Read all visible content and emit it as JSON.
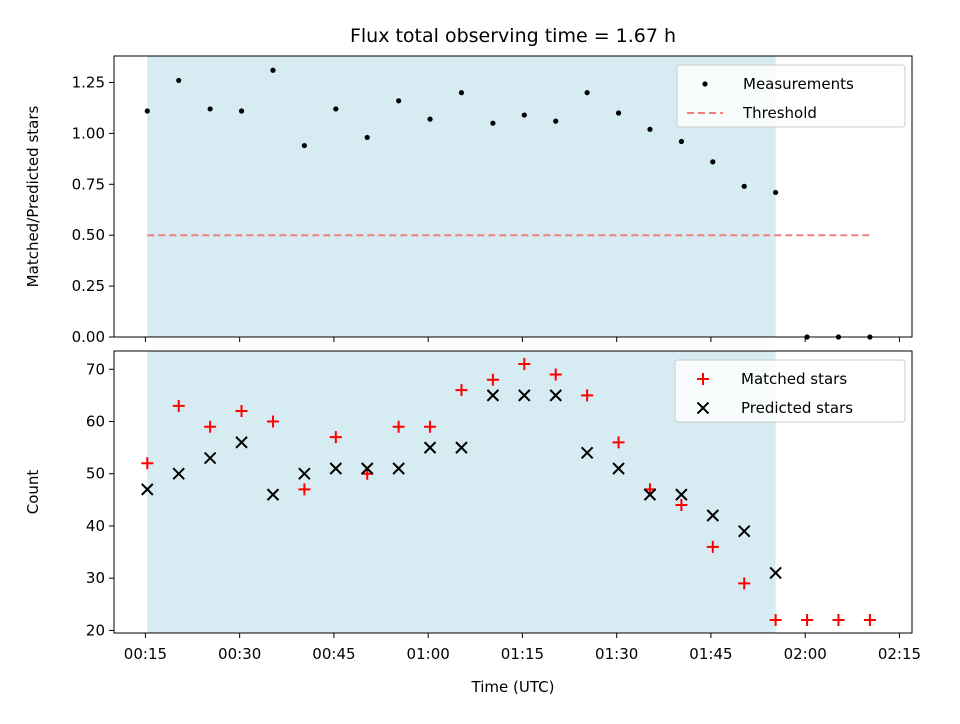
{
  "chart_data": {
    "type": "scatter",
    "title": "Flux total observing time = 1.67 h",
    "xlabel": "Time (UTC)",
    "x_ticks": [
      "00:15",
      "00:30",
      "00:45",
      "01:00",
      "01:15",
      "01:30",
      "01:45",
      "02:00",
      "02:15"
    ],
    "x_tick_minutes": [
      15,
      30,
      45,
      60,
      75,
      90,
      105,
      120,
      135
    ],
    "xlim_minutes": [
      10,
      137
    ],
    "shaded_span_minutes": [
      15.3,
      115.3
    ],
    "shaded_color": "#add8e6",
    "panels": [
      {
        "ylabel": "Matched/Predicted stars",
        "ylim": [
          0,
          1.38
        ],
        "y_ticks": [
          "0.00",
          "0.25",
          "0.50",
          "0.75",
          "1.00",
          "1.25"
        ],
        "y_tick_values": [
          0,
          0.25,
          0.5,
          0.75,
          1.0,
          1.25
        ],
        "legend": [
          "Measurements",
          "Threshold"
        ],
        "legend_position": "upper right",
        "series": [
          {
            "name": "Measurements",
            "marker": "dot",
            "color": "#000000",
            "x": [
              15.3,
              20.3,
              25.3,
              30.3,
              35.3,
              40.3,
              45.3,
              50.3,
              55.3,
              60.3,
              65.3,
              70.3,
              75.3,
              80.3,
              85.3,
              90.3,
              95.3,
              100.3,
              105.3,
              110.3,
              115.3,
              120.3,
              125.3,
              130.3
            ],
            "y": [
              1.11,
              1.26,
              1.12,
              1.11,
              1.31,
              0.94,
              1.12,
              0.98,
              1.16,
              1.07,
              1.2,
              1.05,
              1.09,
              1.06,
              1.2,
              1.1,
              1.02,
              0.96,
              0.86,
              0.74,
              0.71,
              0.0,
              0.0,
              0.0
            ]
          },
          {
            "name": "Threshold",
            "marker": "dashed-line",
            "color": "#f08080",
            "x": [
              15.3,
              130.3
            ],
            "y": [
              0.5,
              0.5
            ]
          }
        ]
      },
      {
        "ylabel": "Count",
        "ylim": [
          19.5,
          73.5
        ],
        "y_ticks": [
          "20",
          "30",
          "40",
          "50",
          "60",
          "70"
        ],
        "y_tick_values": [
          20,
          30,
          40,
          50,
          60,
          70
        ],
        "legend": [
          "Matched stars",
          "Predicted stars"
        ],
        "legend_position": "upper right",
        "series": [
          {
            "name": "Matched stars",
            "marker": "plus",
            "color": "#ff0000",
            "x": [
              15.3,
              20.3,
              25.3,
              30.3,
              35.3,
              40.3,
              45.3,
              50.3,
              55.3,
              60.3,
              65.3,
              70.3,
              75.3,
              80.3,
              85.3,
              90.3,
              95.3,
              100.3,
              105.3,
              110.3,
              115.3,
              120.3,
              125.3,
              130.3
            ],
            "y": [
              52,
              63,
              59,
              62,
              60,
              47,
              57,
              50,
              59,
              59,
              66,
              68,
              71,
              69,
              65,
              56,
              47,
              44,
              36,
              29,
              22,
              22,
              22,
              22
            ]
          },
          {
            "name": "Predicted stars",
            "marker": "x",
            "color": "#000000",
            "x": [
              15.3,
              20.3,
              25.3,
              30.3,
              35.3,
              40.3,
              45.3,
              50.3,
              55.3,
              60.3,
              65.3,
              70.3,
              75.3,
              80.3,
              85.3,
              90.3,
              95.3,
              100.3,
              105.3,
              110.3,
              115.3
            ],
            "y": [
              47,
              50,
              53,
              56,
              46,
              50,
              51,
              51,
              51,
              55,
              55,
              65,
              65,
              65,
              54,
              51,
              46,
              46,
              42,
              39,
              31
            ]
          }
        ]
      }
    ]
  }
}
